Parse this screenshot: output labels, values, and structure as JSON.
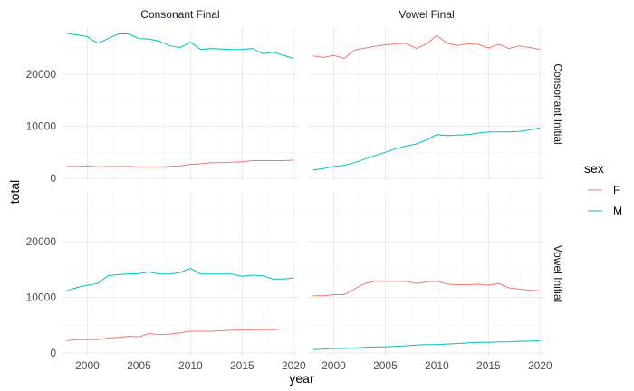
{
  "chart_data": {
    "type": "line",
    "xlabel": "year",
    "ylabel": "total",
    "xlim": [
      1997.5,
      2020.5
    ],
    "ylim": [
      -500,
      29000
    ],
    "x_ticks": [
      2000,
      2005,
      2010,
      2015,
      2020
    ],
    "y_ticks": [
      0,
      10000,
      20000
    ],
    "grid": true,
    "legend": {
      "title": "sex",
      "position": "right",
      "entries": [
        {
          "label": "F",
          "color": "#F8766D"
        },
        {
          "label": "M",
          "color": "#00BFC4"
        }
      ]
    },
    "facets": {
      "columns": [
        "Consonant Final",
        "Vowel Final"
      ],
      "rows": [
        "Consonant Initial",
        "Vowel Initial"
      ]
    },
    "x": [
      1998,
      1999,
      2000,
      2001,
      2002,
      2003,
      2004,
      2005,
      2006,
      2007,
      2008,
      2009,
      2010,
      2011,
      2012,
      2013,
      2014,
      2015,
      2016,
      2017,
      2018,
      2019,
      2020
    ],
    "panels": [
      {
        "column": "Consonant Final",
        "row": "Consonant Initial",
        "series": [
          {
            "name": "F",
            "values": [
              2300,
              2300,
              2400,
              2200,
              2300,
              2300,
              2300,
              2200,
              2200,
              2200,
              2300,
              2400,
              2700,
              2800,
              3000,
              3000,
              3100,
              3200,
              3400,
              3400,
              3400,
              3400,
              3500
            ]
          },
          {
            "name": "M",
            "values": [
              27800,
              27500,
              27200,
              25900,
              26800,
              27700,
              27700,
              26800,
              26700,
              26300,
              25400,
              25100,
              26100,
              24700,
              24900,
              24800,
              24700,
              24700,
              24900,
              23900,
              24200,
              23600,
              23000
            ]
          }
        ]
      },
      {
        "column": "Vowel Final",
        "row": "Consonant Initial",
        "series": [
          {
            "name": "F",
            "values": [
              23500,
              23200,
              23600,
              23000,
              24600,
              25000,
              25300,
              25600,
              25800,
              25900,
              24900,
              25800,
              27400,
              25900,
              25500,
              25800,
              25700,
              25000,
              25700,
              24900,
              25400,
              25100,
              24700
            ]
          },
          {
            "name": "M",
            "values": [
              1600,
              1900,
              2300,
              2500,
              3000,
              3700,
              4400,
              5000,
              5700,
              6200,
              6600,
              7400,
              8400,
              8200,
              8300,
              8400,
              8700,
              8900,
              8900,
              8900,
              9000,
              9300,
              9700
            ]
          }
        ]
      },
      {
        "column": "Consonant Final",
        "row": "Vowel Initial",
        "series": [
          {
            "name": "F",
            "values": [
              2200,
              2400,
              2400,
              2400,
              2700,
              2800,
              3000,
              2900,
              3500,
              3300,
              3400,
              3600,
              3900,
              3900,
              3900,
              4000,
              4100,
              4100,
              4200,
              4200,
              4200,
              4300,
              4300
            ]
          },
          {
            "name": "M",
            "values": [
              11200,
              11800,
              12200,
              12500,
              13900,
              14100,
              14200,
              14300,
              14600,
              14200,
              14200,
              14500,
              15200,
              14200,
              14200,
              14200,
              14200,
              13800,
              14000,
              13900,
              13300,
              13300,
              13500
            ]
          }
        ]
      },
      {
        "column": "Vowel Final",
        "row": "Vowel Initial",
        "series": [
          {
            "name": "F",
            "values": [
              10300,
              10300,
              10500,
              10500,
              11500,
              12500,
              12900,
              12900,
              12900,
              12900,
              12500,
              12800,
              12900,
              12400,
              12300,
              12300,
              12400,
              12200,
              12500,
              11700,
              11500,
              11300,
              11200
            ]
          },
          {
            "name": "M",
            "values": [
              600,
              700,
              800,
              800,
              900,
              1000,
              1100,
              1100,
              1200,
              1300,
              1400,
              1500,
              1500,
              1600,
              1700,
              1800,
              1900,
              1900,
              2000,
              2000,
              2100,
              2100,
              2200
            ]
          }
        ]
      }
    ]
  }
}
